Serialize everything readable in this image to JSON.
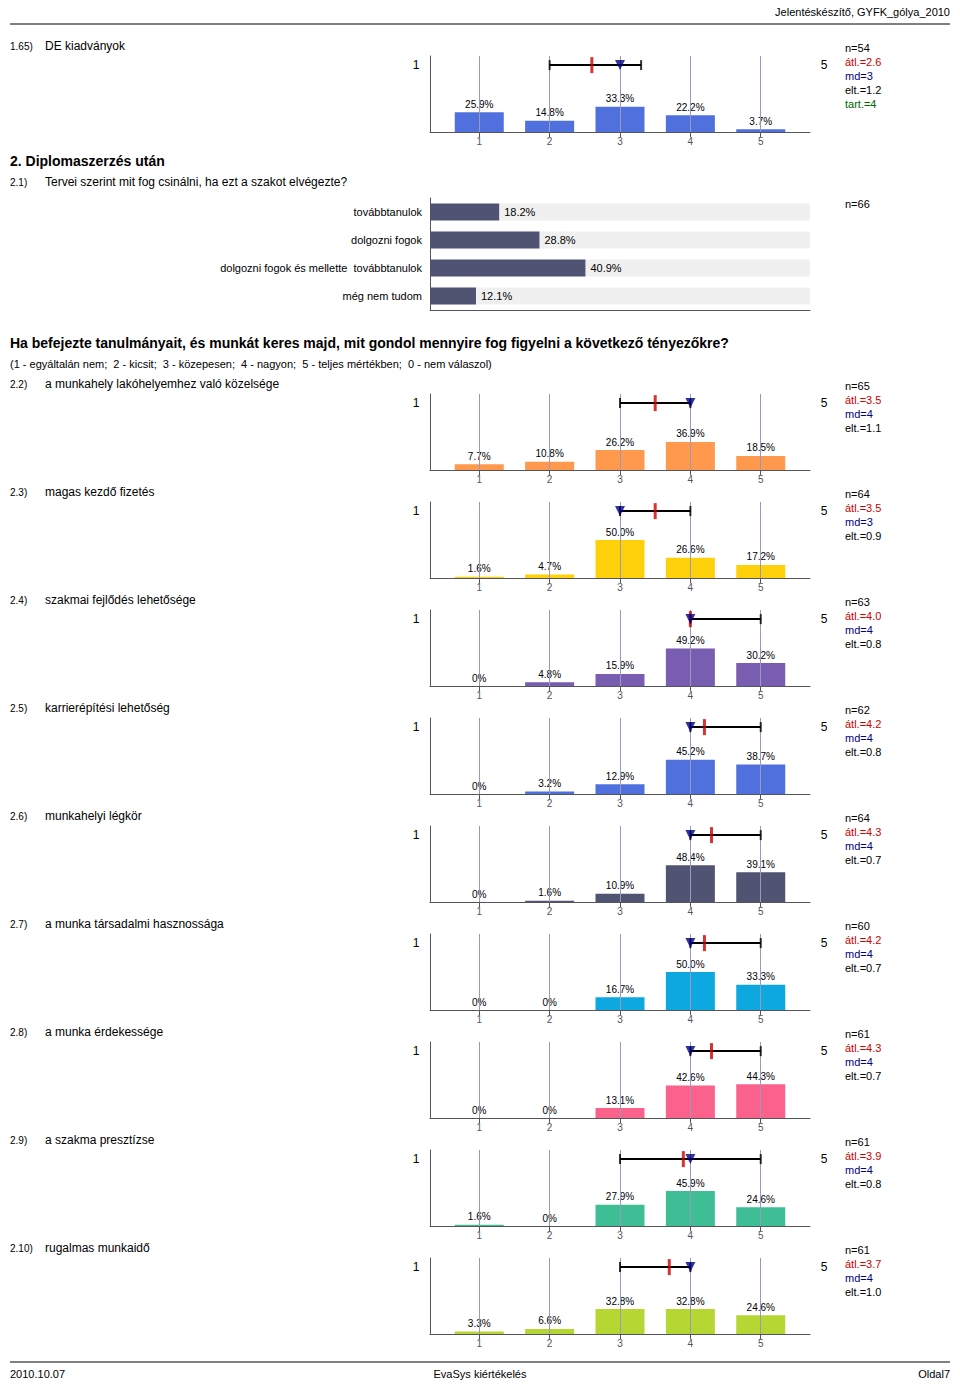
{
  "title": "Jelentéskészítő, GYFK_gólya_2010",
  "footer": [
    "2010.10.07",
    "EvaSys kiértékelés",
    "Oldal7"
  ],
  "chart_data": [
    {
      "type": "bar",
      "subtitle": "1.65)",
      "title": "DE kiadványok",
      "x": [
        1,
        2,
        3,
        4,
        5
      ],
      "values": [
        25.9,
        14.8,
        33.3,
        22.2,
        3.7
      ],
      "value_labels": [
        "25.9%",
        "14.8%",
        "33.3%",
        "22.2%",
        "3.7%"
      ],
      "data_labels": true,
      "xlim": [
        0.3,
        5.7
      ],
      "xticks": [
        1,
        2,
        3,
        4,
        5
      ],
      "ylim": [
        0,
        100
      ],
      "tick_labels": "x",
      "grid": true,
      "end_labels": [
        "1",
        "5"
      ],
      "q1": 2.0,
      "q3": 3.3,
      "mean": {
        "value": 2.6,
        "color": "#cc0000"
      },
      "median": {
        "value": 3,
        "color": "#000080"
      },
      "annotations": [
        {
          "text": "n=54"
        },
        {
          "text": "átl.=2.6",
          "color": "#cc0000"
        },
        {
          "text": "md=3",
          "color": "#000080"
        },
        {
          "text": "elt.=1.2"
        },
        {
          "text": "tart.=4",
          "color": "#006400"
        }
      ]
    },
    {
      "type": "bar",
      "orientation": "horizontal",
      "heading": "2. Diplomaszerzés után",
      "subtitle": "2.1)",
      "title": "Tervei szerint mit fog csinálni, ha ezt a szakot elvégezte?",
      "categories": [
        "továbbtanulok",
        "dolgozni fogok",
        "dolgozni fogok és mellette  továbbtanulok",
        "még nem tudom"
      ],
      "values": [
        18.2,
        28.8,
        40.9,
        12.1
      ],
      "value_labels": [
        "18.2%",
        "28.8%",
        "40.9%",
        "12.1%"
      ],
      "data_labels": true,
      "xlim": [
        0,
        100
      ],
      "tick_labels": "y",
      "annotations": [
        {
          "text": "n=66"
        }
      ]
    },
    {
      "type": "bar",
      "heading": "Ha befejezte tanulmányait, és munkát keres majd, mit gondol mennyire fog figyelni a következő tényezőkre?",
      "note": "(1 - egyáltalán nem;  2 - kicsit;  3 - közepesen;  4 - nagyon;  5 - teljes mértékben;  0 - nem válaszol)",
      "subtitle": "2.2)",
      "title": "a munkahely lakóhelyemhez való közelsége",
      "x": [
        1,
        2,
        3,
        4,
        5
      ],
      "values": [
        7.7,
        10.8,
        26.2,
        36.9,
        18.5
      ],
      "value_labels": [
        "7.7%",
        "10.8%",
        "26.2%",
        "36.9%",
        "18.5%"
      ],
      "data_labels": true,
      "xlim": [
        0.3,
        5.7
      ],
      "xticks": [
        1,
        2,
        3,
        4,
        5
      ],
      "ylim": [
        0,
        100
      ],
      "tick_labels": "x",
      "grid": true,
      "end_labels": [
        "1",
        "5"
      ],
      "q1": 3,
      "q3": 4,
      "mean": {
        "value": 3.5,
        "color": "#cc0000"
      },
      "median": {
        "value": 4,
        "color": "#000080"
      },
      "annotations": [
        {
          "text": "n=65"
        },
        {
          "text": "átl.=3.5",
          "color": "#cc0000"
        },
        {
          "text": "md=4",
          "color": "#000080"
        },
        {
          "text": "elt.=1.1"
        }
      ]
    },
    {
      "type": "bar",
      "subtitle": "2.3)",
      "title": "magas kezdő fizetés",
      "x": [
        1,
        2,
        3,
        4,
        5
      ],
      "values": [
        1.6,
        4.7,
        50.0,
        26.6,
        17.2
      ],
      "value_labels": [
        "1.6%",
        "4.7%",
        "50.0%",
        "26.6%",
        "17.2%"
      ],
      "data_labels": true,
      "xlim": [
        0.3,
        5.7
      ],
      "xticks": [
        1,
        2,
        3,
        4,
        5
      ],
      "ylim": [
        0,
        100
      ],
      "tick_labels": "x",
      "grid": true,
      "end_labels": [
        "1",
        "5"
      ],
      "q1": 3,
      "q3": 4,
      "mean": {
        "value": 3.5,
        "color": "#cc0000"
      },
      "median": {
        "value": 3,
        "color": "#000080"
      },
      "annotations": [
        {
          "text": "n=64"
        },
        {
          "text": "átl.=3.5",
          "color": "#cc0000"
        },
        {
          "text": "md=3",
          "color": "#000080"
        },
        {
          "text": "elt.=0.9"
        }
      ]
    },
    {
      "type": "bar",
      "subtitle": "2.4)",
      "title": "szakmai fejlődés lehetősége",
      "x": [
        1,
        2,
        3,
        4,
        5
      ],
      "values": [
        0.0,
        4.8,
        15.9,
        49.2,
        30.2
      ],
      "value_labels": [
        "0%",
        "4.8%",
        "15.9%",
        "49.2%",
        "30.2%"
      ],
      "data_labels": true,
      "xlim": [
        0.3,
        5.7
      ],
      "xticks": [
        1,
        2,
        3,
        4,
        5
      ],
      "ylim": [
        0,
        100
      ],
      "tick_labels": "x",
      "grid": true,
      "end_labels": [
        "1",
        "5"
      ],
      "q1": 4,
      "q3": 5,
      "mean": {
        "value": 4.0,
        "color": "#cc0000"
      },
      "median": {
        "value": 4,
        "color": "#000080"
      },
      "annotations": [
        {
          "text": "n=63"
        },
        {
          "text": "átl.=4.0",
          "color": "#cc0000"
        },
        {
          "text": "md=4",
          "color": "#000080"
        },
        {
          "text": "elt.=0.8"
        }
      ]
    },
    {
      "type": "bar",
      "subtitle": "2.5)",
      "title": "karrierépítési lehetőség",
      "x": [
        1,
        2,
        3,
        4,
        5
      ],
      "values": [
        0.0,
        3.2,
        12.9,
        45.2,
        38.7
      ],
      "value_labels": [
        "0%",
        "3.2%",
        "12.9%",
        "45.2%",
        "38.7%"
      ],
      "data_labels": true,
      "xlim": [
        0.3,
        5.7
      ],
      "xticks": [
        1,
        2,
        3,
        4,
        5
      ],
      "ylim": [
        0,
        100
      ],
      "tick_labels": "x",
      "grid": true,
      "end_labels": [
        "1",
        "5"
      ],
      "q1": 4,
      "q3": 5,
      "mean": {
        "value": 4.2,
        "color": "#cc0000"
      },
      "median": {
        "value": 4,
        "color": "#000080"
      },
      "annotations": [
        {
          "text": "n=62"
        },
        {
          "text": "átl.=4.2",
          "color": "#cc0000"
        },
        {
          "text": "md=4",
          "color": "#000080"
        },
        {
          "text": "elt.=0.8"
        }
      ]
    },
    {
      "type": "bar",
      "subtitle": "2.6)",
      "title": "munkahelyi légkör",
      "x": [
        1,
        2,
        3,
        4,
        5
      ],
      "values": [
        0.0,
        1.6,
        10.9,
        48.4,
        39.1
      ],
      "value_labels": [
        "0%",
        "1.6%",
        "10.9%",
        "48.4%",
        "39.1%"
      ],
      "data_labels": true,
      "xlim": [
        0.3,
        5.7
      ],
      "xticks": [
        1,
        2,
        3,
        4,
        5
      ],
      "ylim": [
        0,
        100
      ],
      "tick_labels": "x",
      "grid": true,
      "end_labels": [
        "1",
        "5"
      ],
      "q1": 4,
      "q3": 5,
      "mean": {
        "value": 4.3,
        "color": "#cc0000"
      },
      "median": {
        "value": 4,
        "color": "#000080"
      },
      "annotations": [
        {
          "text": "n=64"
        },
        {
          "text": "átl.=4.3",
          "color": "#cc0000"
        },
        {
          "text": "md=4",
          "color": "#000080"
        },
        {
          "text": "elt.=0.7"
        }
      ]
    },
    {
      "type": "bar",
      "subtitle": "2.7)",
      "title": "a munka társadalmi hasznossága",
      "x": [
        1,
        2,
        3,
        4,
        5
      ],
      "values": [
        0.0,
        0.0,
        16.7,
        50.0,
        33.3
      ],
      "value_labels": [
        "0%",
        "0%",
        "16.7%",
        "50.0%",
        "33.3%"
      ],
      "data_labels": true,
      "xlim": [
        0.3,
        5.7
      ],
      "xticks": [
        1,
        2,
        3,
        4,
        5
      ],
      "ylim": [
        0,
        100
      ],
      "tick_labels": "x",
      "grid": true,
      "end_labels": [
        "1",
        "5"
      ],
      "q1": 4,
      "q3": 5,
      "mean": {
        "value": 4.2,
        "color": "#cc0000"
      },
      "median": {
        "value": 4,
        "color": "#000080"
      },
      "annotations": [
        {
          "text": "n=60"
        },
        {
          "text": "átl.=4.2",
          "color": "#cc0000"
        },
        {
          "text": "md=4",
          "color": "#000080"
        },
        {
          "text": "elt.=0.7"
        }
      ]
    },
    {
      "type": "bar",
      "subtitle": "2.8)",
      "title": "a munka érdekessége",
      "x": [
        1,
        2,
        3,
        4,
        5
      ],
      "values": [
        0.0,
        0.0,
        13.1,
        42.6,
        44.3
      ],
      "value_labels": [
        "0%",
        "0%",
        "13.1%",
        "42.6%",
        "44.3%"
      ],
      "data_labels": true,
      "xlim": [
        0.3,
        5.7
      ],
      "xticks": [
        1,
        2,
        3,
        4,
        5
      ],
      "ylim": [
        0,
        100
      ],
      "tick_labels": "x",
      "grid": true,
      "end_labels": [
        "1",
        "5"
      ],
      "q1": 4,
      "q3": 5,
      "mean": {
        "value": 4.3,
        "color": "#cc0000"
      },
      "median": {
        "value": 4,
        "color": "#000080"
      },
      "annotations": [
        {
          "text": "n=61"
        },
        {
          "text": "átl.=4.3",
          "color": "#cc0000"
        },
        {
          "text": "md=4",
          "color": "#000080"
        },
        {
          "text": "elt.=0.7"
        }
      ]
    },
    {
      "type": "bar",
      "subtitle": "2.9)",
      "title": "a szakma presztízse",
      "x": [
        1,
        2,
        3,
        4,
        5
      ],
      "values": [
        1.6,
        0.0,
        27.9,
        45.9,
        24.6
      ],
      "value_labels": [
        "1.6%",
        "0%",
        "27.9%",
        "45.9%",
        "24.6%"
      ],
      "data_labels": true,
      "xlim": [
        0.3,
        5.7
      ],
      "xticks": [
        1,
        2,
        3,
        4,
        5
      ],
      "ylim": [
        0,
        100
      ],
      "tick_labels": "x",
      "grid": true,
      "end_labels": [
        "1",
        "5"
      ],
      "q1": 3,
      "q3": 5,
      "mean": {
        "value": 3.9,
        "color": "#cc0000"
      },
      "median": {
        "value": 4,
        "color": "#000080"
      },
      "annotations": [
        {
          "text": "n=61"
        },
        {
          "text": "átl.=3.9",
          "color": "#cc0000"
        },
        {
          "text": "md=4",
          "color": "#000080"
        },
        {
          "text": "elt.=0.8"
        }
      ]
    },
    {
      "type": "bar",
      "subtitle": "2.10)",
      "title": "rugalmas munkaidő",
      "x": [
        1,
        2,
        3,
        4,
        5
      ],
      "values": [
        3.3,
        6.6,
        32.8,
        32.8,
        24.6
      ],
      "value_labels": [
        "3.3%",
        "6.6%",
        "32.8%",
        "32.8%",
        "24.6%"
      ],
      "data_labels": true,
      "xlim": [
        0.3,
        5.7
      ],
      "xticks": [
        1,
        2,
        3,
        4,
        5
      ],
      "ylim": [
        0,
        100
      ],
      "tick_labels": "x",
      "grid": true,
      "end_labels": [
        "1",
        "5"
      ],
      "q1": 3,
      "q3": 4,
      "mean": {
        "value": 3.7,
        "color": "#cc0000"
      },
      "median": {
        "value": 4,
        "color": "#000080"
      },
      "annotations": [
        {
          "text": "n=61"
        },
        {
          "text": "átl.=3.7",
          "color": "#cc0000"
        },
        {
          "text": "md=4",
          "color": "#000080"
        },
        {
          "text": "elt.=1.0"
        }
      ]
    }
  ]
}
